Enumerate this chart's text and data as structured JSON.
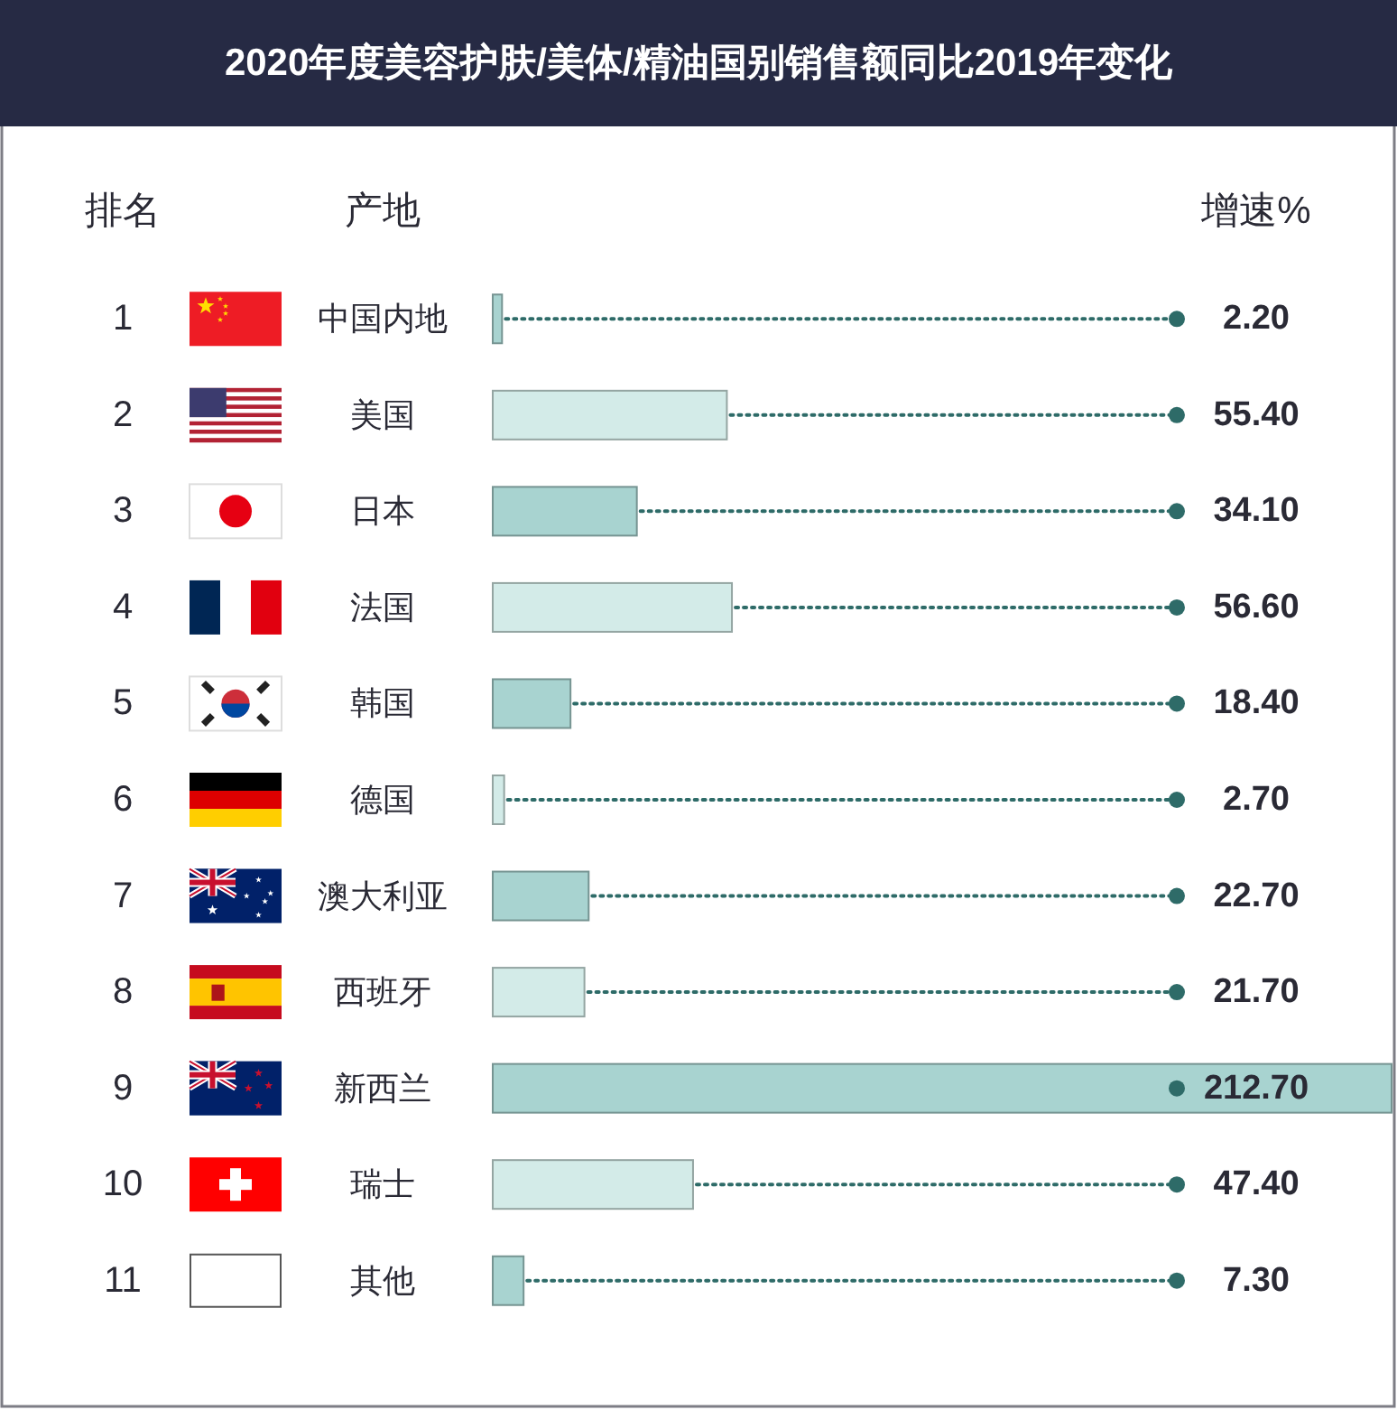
{
  "chart_data": {
    "type": "bar",
    "orientation": "horizontal",
    "title": "2020年度美容护肤/美体/精油国别销售额同比2019年变化",
    "y2label": "排名",
    "ylabel": "产地",
    "xlabel": "增速%",
    "categories": [
      "中国内地",
      "美国",
      "日本",
      "法国",
      "韩国",
      "德国",
      "澳大利亚",
      "西班牙",
      "新西兰",
      "瑞士",
      "其他"
    ],
    "y2_categories": [
      "1",
      "2",
      "3",
      "4",
      "5",
      "6",
      "7",
      "8",
      "9",
      "10",
      "11"
    ],
    "values": [
      2.2,
      55.4,
      34.1,
      56.6,
      18.4,
      2.7,
      22.7,
      21.7,
      212.7,
      47.4,
      7.3
    ],
    "value_labels": [
      "2.20",
      "55.40",
      "34.10",
      "56.60",
      "18.40",
      "2.70",
      "22.70",
      "21.70",
      "212.70",
      "47.40",
      "7.30"
    ],
    "colors": [
      "#a8d3d0",
      "#d3ebe8",
      "#a8d3d0",
      "#d3ebe8",
      "#a8d3d0",
      "#d3ebe8",
      "#a8d3d0",
      "#d3ebe8",
      "#a8d3d0",
      "#d3ebe8",
      "#a8d3d0"
    ]
  }
}
